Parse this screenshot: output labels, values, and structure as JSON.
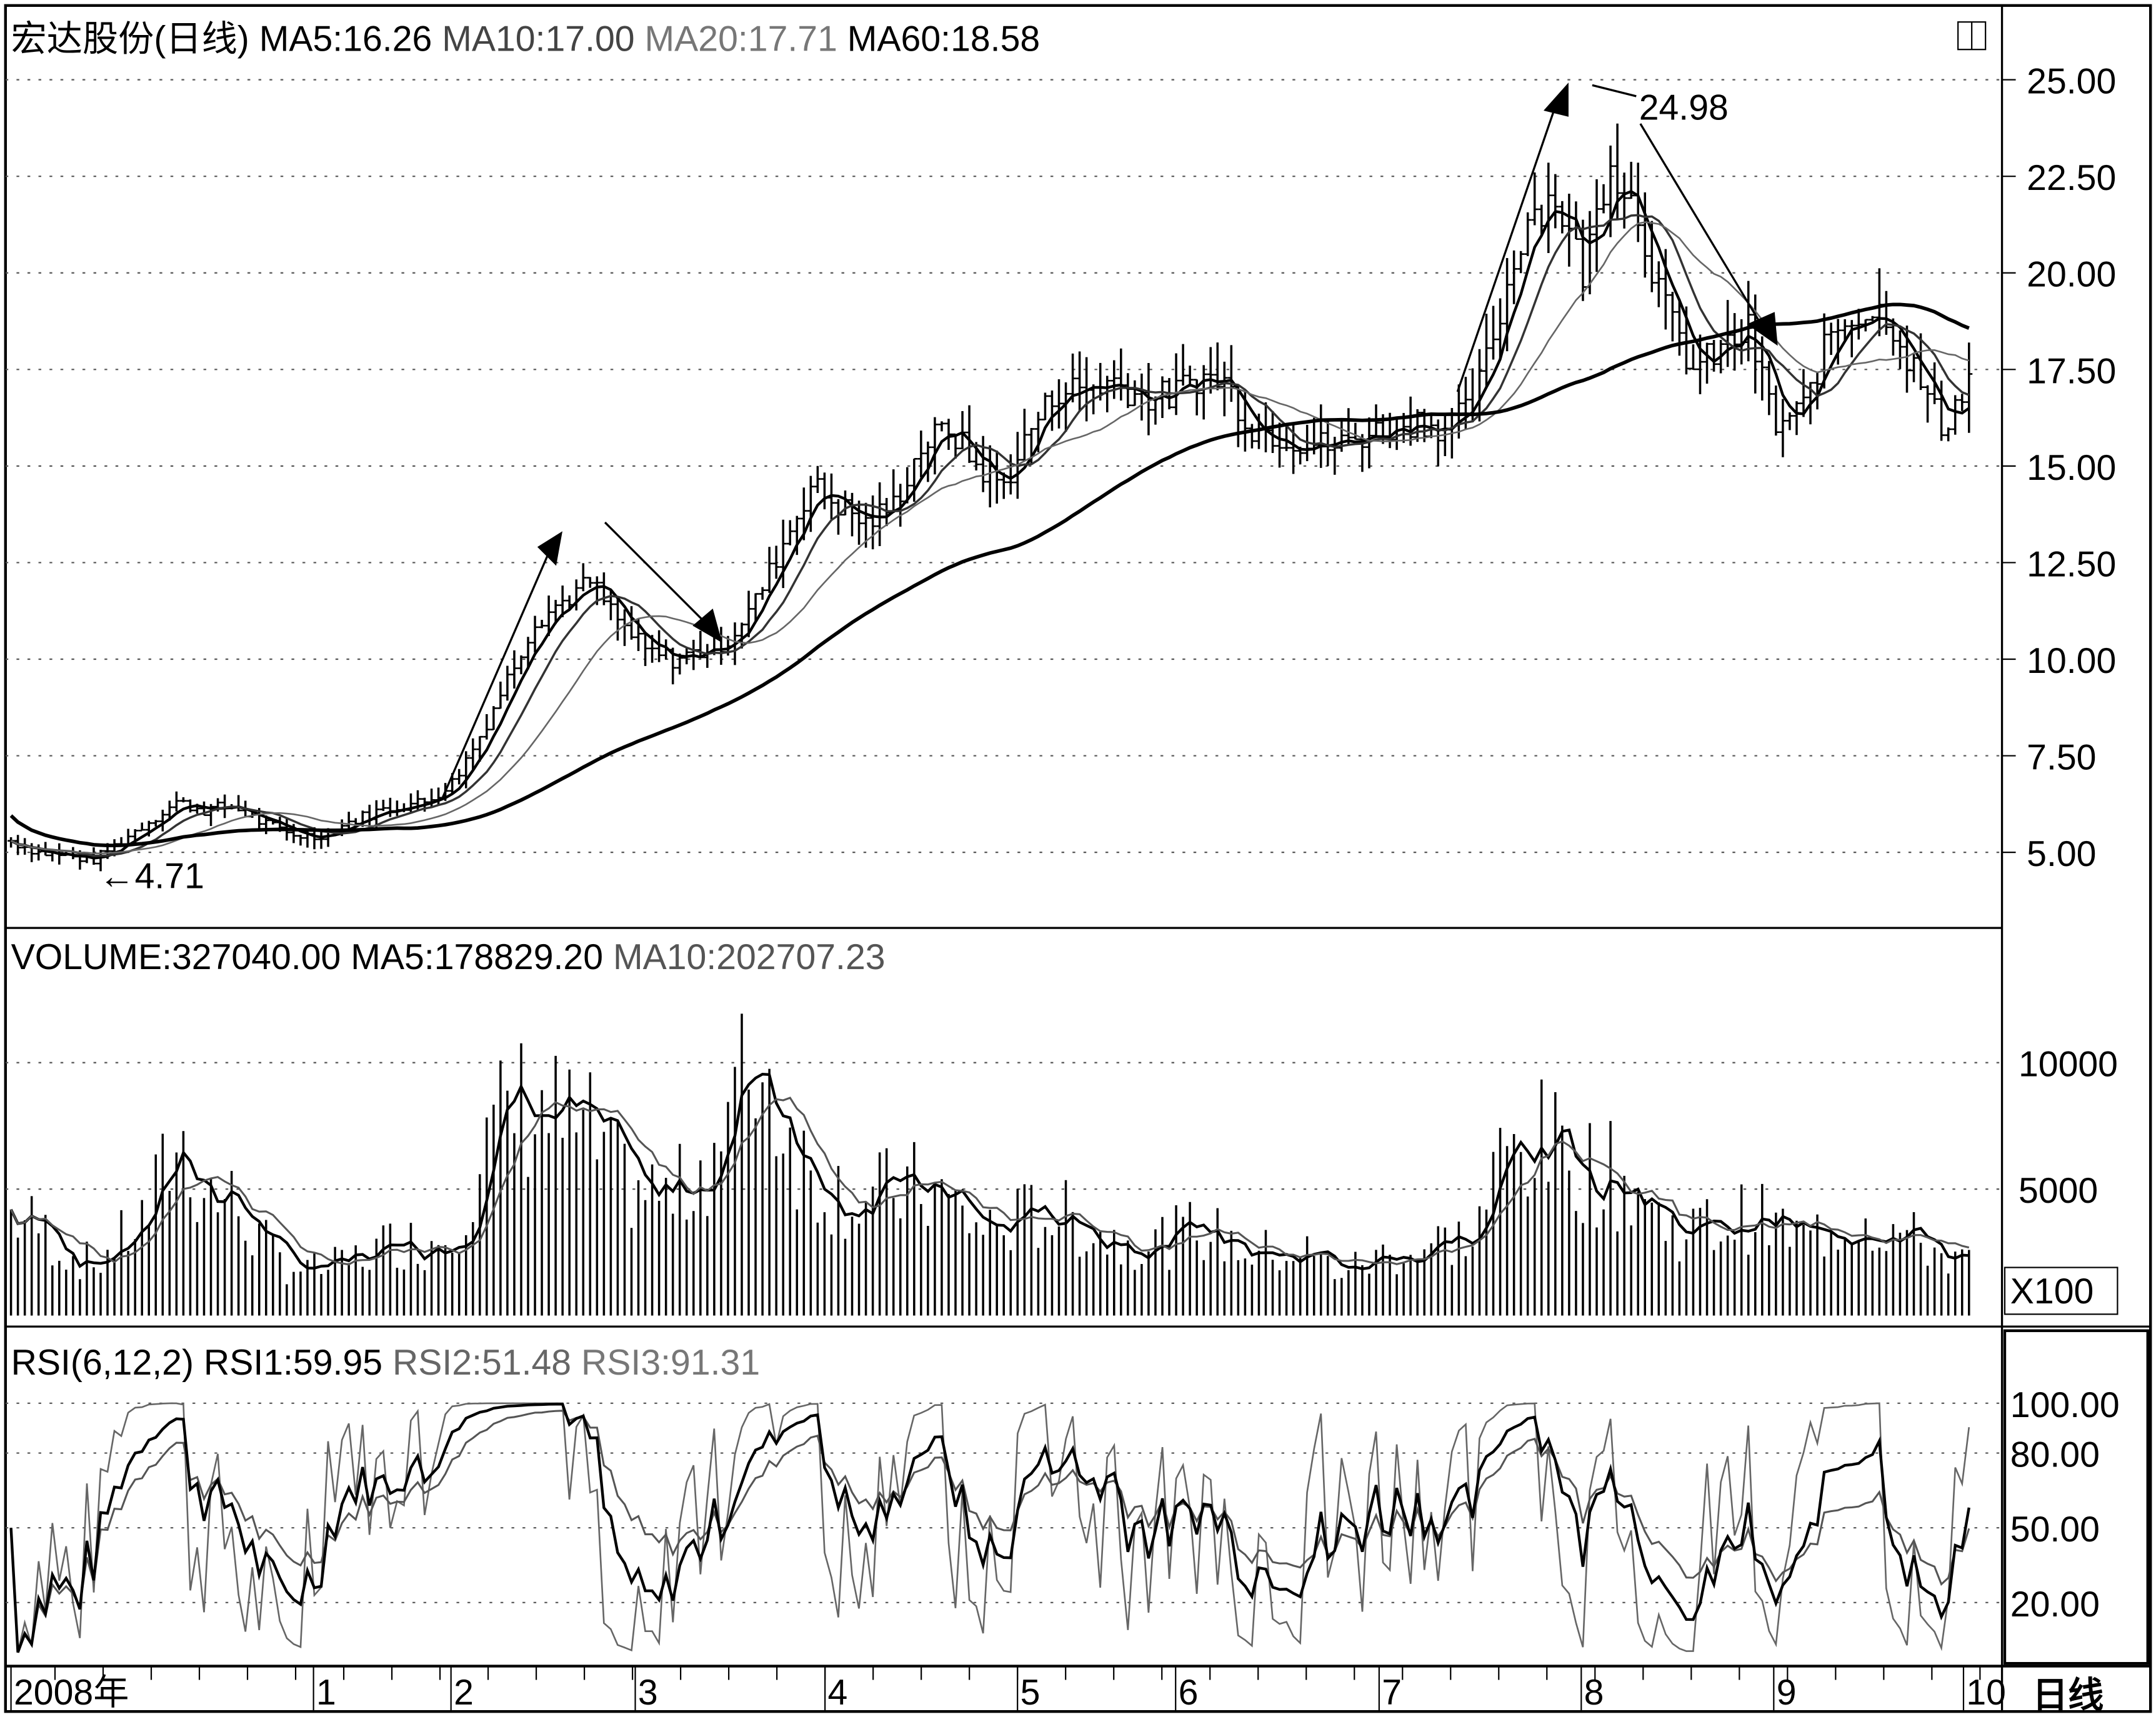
{
  "chart_data": [
    {
      "type": "bar",
      "title": "宏达股份(日线)",
      "legend": [
        {
          "label": "MA5:16.26",
          "color": "#000000"
        },
        {
          "label": "MA10:17.00",
          "color": "#444444"
        },
        {
          "label": "MA20:17.71",
          "color": "#777777"
        },
        {
          "label": "MA60:18.58",
          "color": "#000000"
        }
      ],
      "y_ticks": [
        "25.00",
        "22.50",
        "20.00",
        "17.50",
        "15.00",
        "12.50",
        "10.00",
        "7.50",
        "5.00"
      ],
      "ylim": [
        3.2,
        26.9
      ],
      "close": [
        5.3,
        5.0,
        4.9,
        4.8,
        5.3,
        5.8,
        6.3,
        6.1,
        6.2,
        5.8,
        5.5,
        5.4,
        5.7,
        6.0,
        6.2,
        6.3,
        6.8,
        8.0,
        9.5,
        11,
        11.5,
        12,
        11,
        10.2,
        10,
        10.2,
        10.5,
        11.5,
        13,
        14.5,
        14,
        13.5,
        14,
        15.5,
        16,
        15,
        14.5,
        16,
        17,
        17,
        17.2,
        16.8,
        16.8,
        17.3,
        17.2,
        16,
        15.8,
        15.6,
        15.5,
        15.8,
        16,
        16.2,
        16,
        16.5,
        19,
        21.5,
        22,
        20,
        23,
        21.5,
        19,
        17.5,
        18,
        18.5,
        16,
        16.5,
        18.5,
        19,
        19,
        17.5,
        16,
        17.2
      ],
      "annotations": {
        "high": "24.98",
        "low": "←4.71"
      },
      "grid": true
    },
    {
      "type": "bar",
      "title": "VOLUME:327040.00",
      "legend": [
        {
          "label": "MA5:178829.20",
          "color": "#000000"
        },
        {
          "label": "MA10:202707.23",
          "color": "#555555"
        }
      ],
      "y_ticks": [
        "10000",
        "5000"
      ],
      "unit": "X100",
      "values": [
        4000,
        3500,
        2500,
        2000,
        3000,
        4000,
        7000,
        5000,
        4500,
        3000,
        2000,
        1800,
        2000,
        2500,
        3000,
        2800,
        3500,
        6000,
        8000,
        8500,
        7500,
        7000,
        5500,
        5000,
        4500,
        6000,
        7500,
        10500,
        8000,
        5500,
        5000,
        4500,
        5000,
        5000,
        4500,
        3500,
        3500,
        4000,
        4000,
        3500,
        3000,
        3000,
        3000,
        3500,
        3000,
        2500,
        2500,
        2500,
        1800,
        2000,
        2500,
        2500,
        3000,
        3000,
        6000,
        7000,
        6500,
        6000,
        5500,
        5000,
        3500,
        3500,
        3500,
        4000,
        3500,
        3000,
        3500,
        4000,
        3500,
        3000,
        2500,
        2000
      ],
      "grid": true
    },
    {
      "type": "line",
      "title": "RSI(6,12,2)",
      "legend": [
        {
          "label": "RSI1:59.95",
          "color": "#000000"
        },
        {
          "label": "RSI2:51.48",
          "color": "#555555"
        },
        {
          "label": "RSI3:91.31",
          "color": "#777777"
        }
      ],
      "y_ticks": [
        "100.00",
        "80.00",
        "50.00",
        "20.00"
      ],
      "ylim": [
        0,
        100
      ]
    }
  ],
  "x_axis": {
    "labels": [
      "2008年",
      "1",
      "2",
      "3",
      "4",
      "5",
      "6",
      "7",
      "8",
      "9",
      "10"
    ],
    "period": "日线"
  }
}
